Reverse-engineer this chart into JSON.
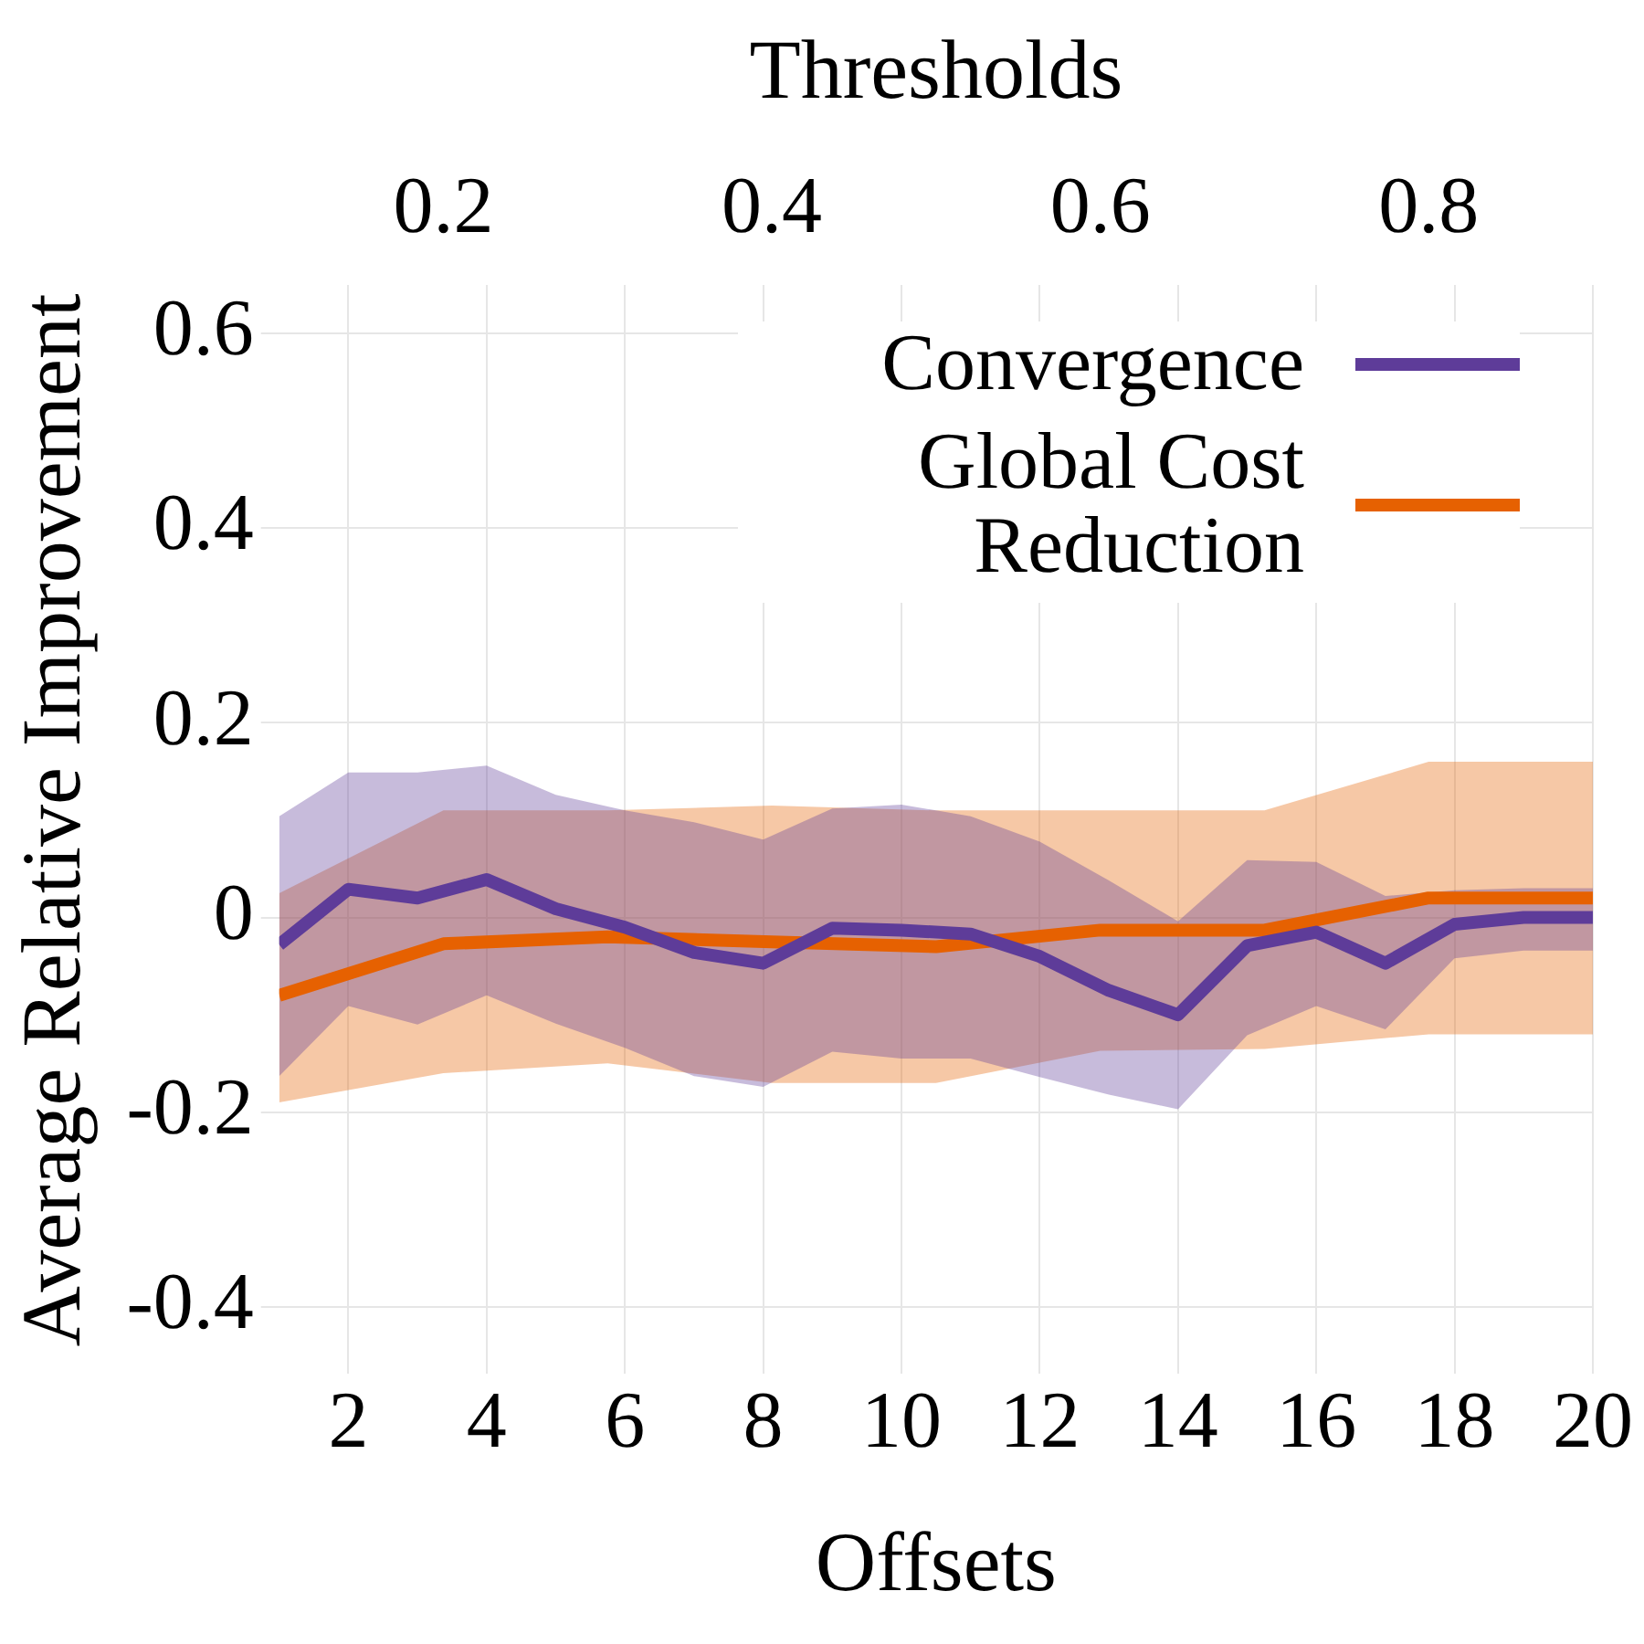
{
  "chart_data": {
    "type": "line",
    "xlabel": "Offsets",
    "x2label": "Thresholds",
    "ylabel": "Average Relative Improvement",
    "xlim": [
      1,
      20
    ],
    "xticks": [
      2,
      4,
      6,
      8,
      10,
      12,
      14,
      16,
      18,
      20
    ],
    "x2lim": [
      0.1,
      0.9
    ],
    "x2ticks": [
      0.2,
      0.4,
      0.6,
      0.8
    ],
    "ylim": [
      -0.45,
      0.65
    ],
    "yticks": [
      -0.4,
      -0.2,
      0,
      0.2,
      0.4,
      0.6
    ],
    "grid": true,
    "legend": "top right",
    "line_style": "solid",
    "marker": "none",
    "series": [
      {
        "name": "Convergence",
        "color": "#5e3c99",
        "x": [
          1,
          2,
          3,
          4,
          5,
          6,
          7,
          8,
          9,
          10,
          11,
          12,
          13,
          14,
          15,
          16,
          17,
          18,
          19,
          20
        ],
        "values": [
          -0.028,
          0.029,
          0.02,
          0.039,
          0.009,
          -0.01,
          -0.036,
          -0.047,
          -0.011,
          -0.013,
          -0.017,
          -0.04,
          -0.075,
          -0.1,
          -0.029,
          -0.015,
          -0.047,
          -0.007,
          0,
          0
        ],
        "lower": [
          -0.163,
          -0.091,
          -0.11,
          -0.08,
          -0.109,
          -0.134,
          -0.163,
          -0.174,
          -0.138,
          -0.145,
          -0.145,
          -0.164,
          -0.182,
          -0.197,
          -0.121,
          -0.091,
          -0.115,
          -0.042,
          -0.034,
          -0.034
        ],
        "upper": [
          0.104,
          0.149,
          0.149,
          0.156,
          0.126,
          0.11,
          0.098,
          0.08,
          0.112,
          0.116,
          0.104,
          0.078,
          0.038,
          -0.004,
          0.059,
          0.057,
          0.022,
          0.028,
          0.03,
          0.03
        ]
      },
      {
        "name": "Global Cost Reduction",
        "color": "#e66101",
        "axis": "x2",
        "x": [
          0.1,
          0.2,
          0.3,
          0.4,
          0.5,
          0.6,
          0.7,
          0.8,
          0.9
        ],
        "values": [
          -0.08,
          -0.027,
          -0.02,
          -0.025,
          -0.03,
          -0.013,
          -0.013,
          0.02,
          0.02
        ],
        "lower": [
          -0.19,
          -0.16,
          -0.15,
          -0.17,
          -0.17,
          -0.137,
          -0.135,
          -0.12,
          -0.12
        ],
        "upper": [
          0.025,
          0.11,
          0.11,
          0.115,
          0.11,
          0.11,
          0.11,
          0.16,
          0.16
        ]
      }
    ]
  }
}
